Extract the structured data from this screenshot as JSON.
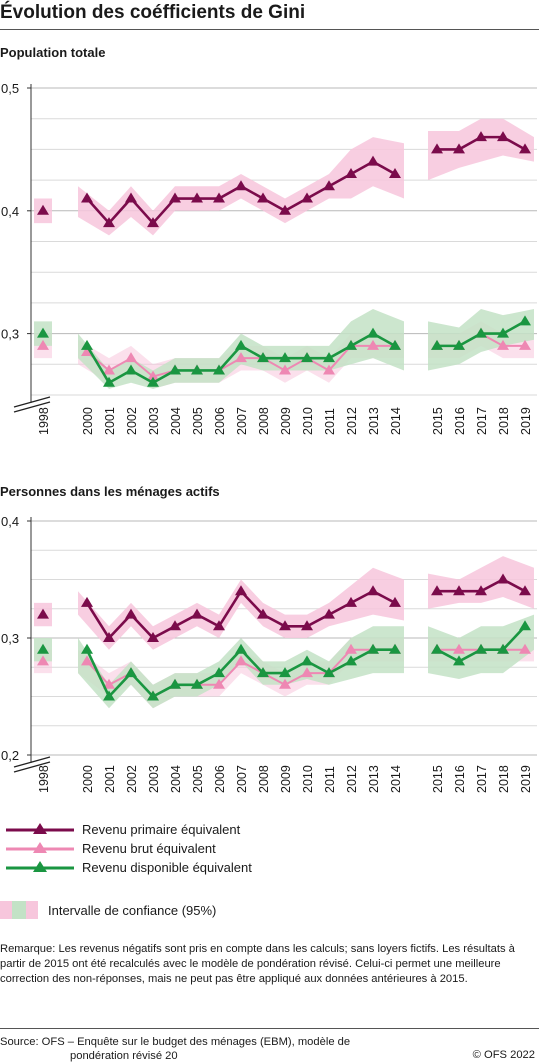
{
  "title": "Évolution des coéfficients de Gini",
  "legend": {
    "items": [
      {
        "label": "Revenu primaire équivalent",
        "color": "#7b0b4b"
      },
      {
        "label": "Revenu brut équivalent",
        "color": "#ee88b3"
      },
      {
        "label": "Revenu disponible équivalent",
        "color": "#1a9641"
      }
    ],
    "ci_label": "Intervalle de confiance (95%)",
    "ci_colors": [
      "#f7c6dc",
      "#c3e2c6"
    ]
  },
  "remark": "Remarque: Les revenus négatifs sont pris en compte dans les calculs; sans loyers fictifs. Les résultats à partir de 2015 ont été recalculés avec le modèle de pondération révisé. Celui-ci permet une meilleure correction des non-réponses, mais ne peut pas être appliqué aux données antérieures à 2015.",
  "source_line1": "Source: OFS – Enquête sur le budget des ménages (EBM), modèle de",
  "source_line2": "pondération révisé 20",
  "copyright": "© OFS 2022",
  "chart_data": [
    {
      "type": "line",
      "title": "Population totale",
      "x": [
        "1998",
        "2000",
        "2001",
        "2002",
        "2003",
        "2004",
        "2005",
        "2006",
        "2007",
        "2008",
        "2009",
        "2010",
        "2011",
        "2012",
        "2013",
        "2014",
        "2015",
        "2016",
        "2017",
        "2018",
        "2019"
      ],
      "yticks": [
        "0,5",
        "0,4",
        "0,3"
      ],
      "ylim": [
        0.25,
        0.5
      ],
      "axis_break": true,
      "grid": true,
      "series": [
        {
          "name": "Revenu primaire équivalent",
          "values": [
            0.4,
            0.41,
            0.39,
            0.41,
            0.39,
            0.41,
            0.41,
            0.41,
            0.42,
            0.41,
            0.4,
            0.41,
            0.42,
            0.43,
            0.44,
            0.43,
            0.45,
            0.45,
            0.46,
            0.46,
            0.45
          ],
          "ci_low": [
            0.39,
            0.395,
            0.38,
            0.395,
            0.38,
            0.4,
            0.4,
            0.4,
            0.41,
            0.4,
            0.39,
            0.4,
            0.41,
            0.41,
            0.42,
            0.41,
            0.425,
            0.435,
            0.44,
            0.445,
            0.44
          ],
          "ci_high": [
            0.41,
            0.42,
            0.4,
            0.42,
            0.4,
            0.42,
            0.42,
            0.42,
            0.43,
            0.42,
            0.41,
            0.42,
            0.43,
            0.45,
            0.46,
            0.455,
            0.465,
            0.465,
            0.475,
            0.475,
            0.46
          ]
        },
        {
          "name": "Revenu brut équivalent",
          "values": [
            0.29,
            0.285,
            0.27,
            0.28,
            0.265,
            0.27,
            0.27,
            0.27,
            0.28,
            0.28,
            0.27,
            0.28,
            0.27,
            0.29,
            0.29,
            0.29,
            0.29,
            0.29,
            0.3,
            0.29,
            0.29
          ],
          "ci_low": [
            0.28,
            0.275,
            0.26,
            0.27,
            0.255,
            0.26,
            0.26,
            0.26,
            0.27,
            0.27,
            0.26,
            0.27,
            0.26,
            0.28,
            0.28,
            0.28,
            0.28,
            0.28,
            0.29,
            0.28,
            0.28
          ],
          "ci_high": [
            0.3,
            0.295,
            0.28,
            0.29,
            0.275,
            0.28,
            0.28,
            0.28,
            0.29,
            0.29,
            0.28,
            0.29,
            0.28,
            0.3,
            0.3,
            0.3,
            0.3,
            0.3,
            0.31,
            0.3,
            0.3
          ]
        },
        {
          "name": "Revenu disponible équivalent",
          "values": [
            0.3,
            0.29,
            0.26,
            0.27,
            0.26,
            0.27,
            0.27,
            0.27,
            0.29,
            0.28,
            0.28,
            0.28,
            0.28,
            0.29,
            0.3,
            0.29,
            0.29,
            0.29,
            0.3,
            0.3,
            0.31
          ],
          "ci_low": [
            0.29,
            0.28,
            0.255,
            0.26,
            0.255,
            0.26,
            0.26,
            0.26,
            0.275,
            0.27,
            0.27,
            0.27,
            0.27,
            0.275,
            0.28,
            0.27,
            0.27,
            0.275,
            0.285,
            0.29,
            0.295
          ],
          "ci_high": [
            0.31,
            0.3,
            0.27,
            0.28,
            0.27,
            0.28,
            0.28,
            0.28,
            0.3,
            0.29,
            0.29,
            0.29,
            0.29,
            0.31,
            0.32,
            0.31,
            0.31,
            0.305,
            0.32,
            0.315,
            0.32
          ]
        }
      ]
    },
    {
      "type": "line",
      "title": "Personnes dans les ménages actifs",
      "x": [
        "1998",
        "2000",
        "2001",
        "2002",
        "2003",
        "2004",
        "2005",
        "2006",
        "2007",
        "2008",
        "2009",
        "2010",
        "2011",
        "2012",
        "2013",
        "2014",
        "2015",
        "2016",
        "2017",
        "2018",
        "2019"
      ],
      "yticks": [
        "0,4",
        "0,3",
        "0,2"
      ],
      "ylim": [
        0.2,
        0.4
      ],
      "axis_break": true,
      "grid": true,
      "series": [
        {
          "name": "Revenu primaire équivalent",
          "values": [
            0.32,
            0.33,
            0.3,
            0.32,
            0.3,
            0.31,
            0.32,
            0.31,
            0.34,
            0.32,
            0.31,
            0.31,
            0.32,
            0.33,
            0.34,
            0.33,
            0.34,
            0.34,
            0.34,
            0.35,
            0.34
          ],
          "ci_low": [
            0.31,
            0.32,
            0.29,
            0.31,
            0.29,
            0.3,
            0.31,
            0.3,
            0.33,
            0.31,
            0.3,
            0.3,
            0.31,
            0.315,
            0.32,
            0.315,
            0.325,
            0.33,
            0.33,
            0.335,
            0.325
          ],
          "ci_high": [
            0.33,
            0.34,
            0.31,
            0.33,
            0.31,
            0.32,
            0.33,
            0.32,
            0.35,
            0.33,
            0.32,
            0.32,
            0.33,
            0.345,
            0.36,
            0.35,
            0.355,
            0.35,
            0.36,
            0.37,
            0.36
          ]
        },
        {
          "name": "Revenu brut équivalent",
          "values": [
            0.28,
            0.28,
            0.26,
            0.27,
            0.25,
            0.26,
            0.26,
            0.26,
            0.28,
            0.27,
            0.26,
            0.27,
            0.27,
            0.29,
            0.29,
            0.29,
            0.29,
            0.29,
            0.29,
            0.29,
            0.29
          ],
          "ci_low": [
            0.27,
            0.27,
            0.25,
            0.26,
            0.24,
            0.25,
            0.25,
            0.25,
            0.27,
            0.26,
            0.25,
            0.26,
            0.26,
            0.28,
            0.28,
            0.28,
            0.28,
            0.28,
            0.28,
            0.28,
            0.28
          ],
          "ci_high": [
            0.29,
            0.29,
            0.27,
            0.28,
            0.26,
            0.27,
            0.27,
            0.27,
            0.29,
            0.28,
            0.27,
            0.28,
            0.28,
            0.3,
            0.3,
            0.3,
            0.3,
            0.3,
            0.3,
            0.3,
            0.3
          ]
        },
        {
          "name": "Revenu disponible équivalent",
          "values": [
            0.29,
            0.29,
            0.25,
            0.27,
            0.25,
            0.26,
            0.26,
            0.27,
            0.29,
            0.27,
            0.27,
            0.28,
            0.27,
            0.28,
            0.29,
            0.29,
            0.29,
            0.28,
            0.29,
            0.29,
            0.31
          ],
          "ci_low": [
            0.28,
            0.27,
            0.24,
            0.26,
            0.24,
            0.25,
            0.25,
            0.26,
            0.28,
            0.26,
            0.26,
            0.265,
            0.26,
            0.265,
            0.27,
            0.27,
            0.27,
            0.265,
            0.27,
            0.27,
            0.29
          ],
          "ci_high": [
            0.3,
            0.3,
            0.26,
            0.28,
            0.26,
            0.27,
            0.27,
            0.28,
            0.3,
            0.28,
            0.28,
            0.29,
            0.28,
            0.3,
            0.31,
            0.31,
            0.31,
            0.3,
            0.31,
            0.31,
            0.32
          ]
        }
      ]
    }
  ]
}
